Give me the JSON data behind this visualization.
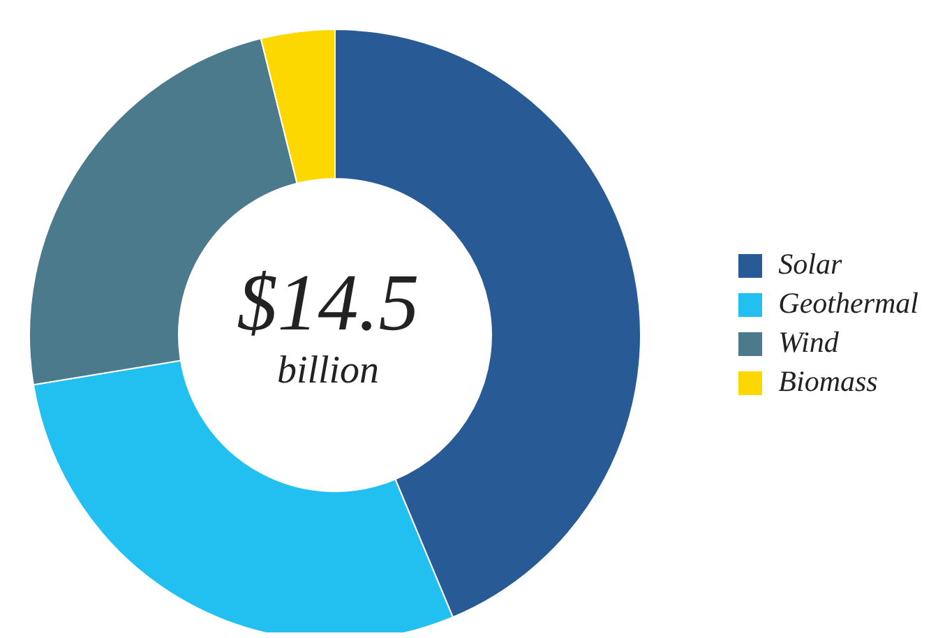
{
  "chart_data": {
    "type": "donut",
    "categories": [
      "Solar",
      "Geothermal",
      "Wind",
      "Biomass"
    ],
    "values": [
      43.7,
      28.7,
      23.7,
      3.9
    ],
    "colors": [
      "#285a96",
      "#21c0f0",
      "#4a7a8c",
      "#fdd700"
    ],
    "annotations": [
      "$14.5",
      "billion"
    ],
    "legend": "right"
  }
}
